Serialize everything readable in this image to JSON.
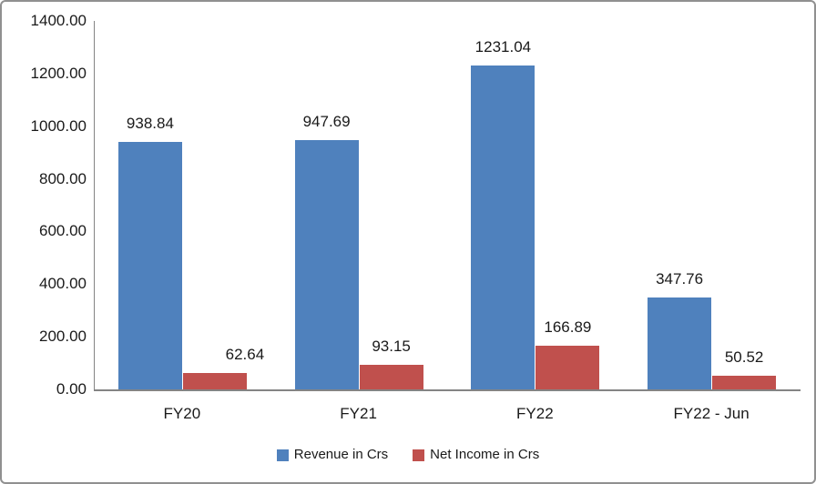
{
  "chart_data": {
    "type": "bar",
    "title": "",
    "xlabel": "",
    "ylabel": "",
    "categories": [
      "FY20",
      "FY21",
      "FY22",
      "FY22 - Jun"
    ],
    "series": [
      {
        "name": "Revenue in Crs",
        "key": "revenue",
        "color": "#4F81BD",
        "values": [
          938.84,
          947.69,
          1231.04,
          347.76
        ],
        "labels": [
          "938.84",
          "947.69",
          "1231.04",
          "347.76"
        ],
        "label_dx": [
          0,
          0,
          0,
          0
        ]
      },
      {
        "name": "Net Income in Crs",
        "key": "net-income",
        "color": "#C0504D",
        "values": [
          62.64,
          93.15,
          166.89,
          50.52
        ],
        "labels": [
          "62.64",
          "93.15",
          "166.89",
          "50.52"
        ],
        "label_dx": [
          33,
          0,
          0,
          0
        ]
      }
    ],
    "ylim": [
      0,
      1400
    ],
    "y_tick_step": 200,
    "y_ticks": [
      "1400.00",
      "1200.00",
      "1000.00",
      "800.00",
      "600.00",
      "400.00",
      "200.00",
      "0.00"
    ],
    "grid": false,
    "legend_position": "bottom",
    "colors": {
      "axis": "#848484",
      "frame_border": "#909090",
      "text": "#1A1A1A",
      "background": "#FFFFFF"
    }
  }
}
